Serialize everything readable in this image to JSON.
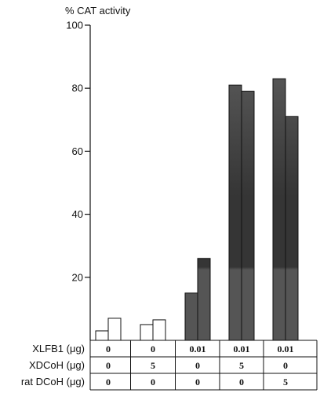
{
  "chart_data": {
    "type": "bar",
    "ylabel": "% CAT activity",
    "ylim": [
      0,
      100
    ],
    "yticks": [
      20,
      40,
      60,
      80,
      100
    ],
    "ytick_labels": [
      "20",
      "40",
      "60",
      "80",
      "100"
    ],
    "groups": [
      {
        "values": [
          3,
          7
        ],
        "style": "open"
      },
      {
        "values": [
          5,
          6.5
        ],
        "style": "open"
      },
      {
        "values": [
          15,
          26
        ],
        "style": "filled"
      },
      {
        "values": [
          81,
          79
        ],
        "style": "filled"
      },
      {
        "values": [
          83,
          71
        ],
        "style": "filled"
      }
    ],
    "table": {
      "rows": [
        {
          "label": "XLFB1 (μg)",
          "values": [
            "0",
            "0",
            "0.01",
            "0.01",
            "0.01"
          ]
        },
        {
          "label": "XDCoH (μg)",
          "values": [
            "0",
            "5",
            "0",
            "5",
            "0"
          ]
        },
        {
          "label": "rat DCoH (μg)",
          "values": [
            "0",
            "0",
            "0",
            "0",
            "5"
          ]
        }
      ]
    },
    "colors": {
      "filled_light": "#555555",
      "filled_mid": "#353535",
      "open": "#ffffff",
      "edge": "#111111"
    }
  }
}
